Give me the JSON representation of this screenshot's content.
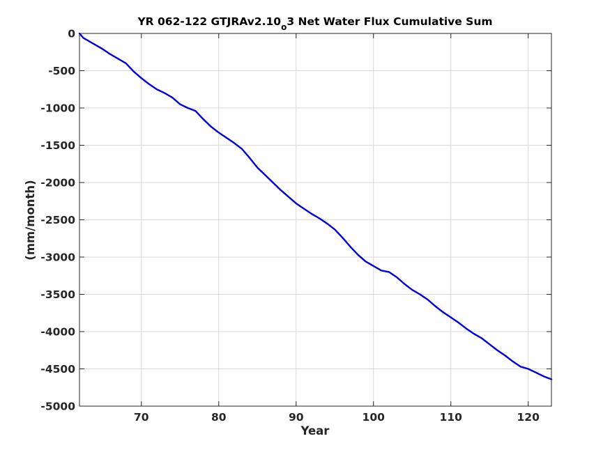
{
  "chart_data": {
    "type": "line",
    "title": {
      "prefix": "YR 062-122 GTJRAv2.10",
      "subscript": "o",
      "suffix": "3 Net Water Flux Cumulative Sum"
    },
    "xlabel": "Year",
    "ylabel": "(mm/month)",
    "xlim": [
      62,
      123
    ],
    "ylim": [
      -5000,
      0
    ],
    "xticks": [
      70,
      80,
      90,
      100,
      110,
      120
    ],
    "yticks": [
      0,
      -500,
      -1000,
      -1500,
      -2000,
      -2500,
      -3000,
      -3500,
      -4000,
      -4500,
      -5000
    ],
    "grid": true,
    "legend": "none",
    "series": [
      {
        "color": "#0000e6",
        "x": [
          62,
          62.5,
          63,
          64,
          65,
          66,
          67,
          68,
          69,
          70,
          71,
          72,
          73,
          74,
          75,
          76,
          77,
          78,
          79,
          80,
          81,
          82,
          83,
          84,
          85,
          86,
          87,
          88,
          89,
          90,
          91,
          92,
          93,
          94,
          95,
          96,
          97,
          98,
          99,
          100,
          101,
          102,
          103,
          104,
          105,
          106,
          107,
          108,
          109,
          110,
          111,
          112,
          113,
          114,
          115,
          116,
          117,
          118,
          119,
          120,
          121,
          122,
          123
        ],
        "y": [
          0,
          -60,
          -90,
          -150,
          -210,
          -280,
          -340,
          -400,
          -510,
          -600,
          -680,
          -750,
          -800,
          -860,
          -950,
          -1000,
          -1040,
          -1150,
          -1250,
          -1330,
          -1400,
          -1470,
          -1550,
          -1670,
          -1800,
          -1900,
          -2000,
          -2100,
          -2190,
          -2280,
          -2350,
          -2420,
          -2480,
          -2550,
          -2630,
          -2740,
          -2860,
          -2970,
          -3060,
          -3120,
          -3180,
          -3200,
          -3270,
          -3360,
          -3440,
          -3500,
          -3570,
          -3660,
          -3740,
          -3810,
          -3880,
          -3960,
          -4030,
          -4090,
          -4170,
          -4250,
          -4320,
          -4400,
          -4470,
          -4500,
          -4550,
          -4600,
          -4640
        ]
      }
    ]
  }
}
